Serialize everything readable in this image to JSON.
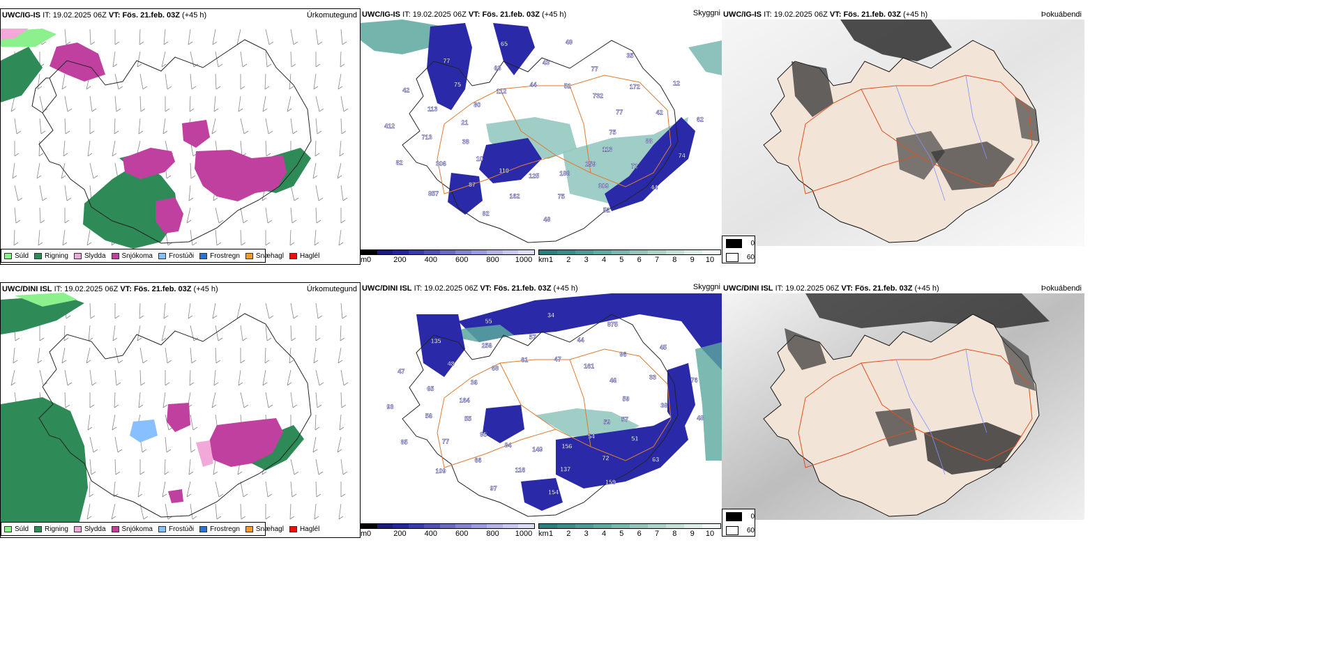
{
  "colors": {
    "drizzle": "#8cf08c",
    "rain": "#2e8b57",
    "sleet": "#f2a8d8",
    "snow": "#c040a0",
    "freezing_drizzle": "#88c0ff",
    "freezing_rain": "#3070d0",
    "snow_grains": "#f0a020",
    "hail": "#e81010",
    "land_fog": "#f3e4d8",
    "roads": "#e05020",
    "rivers": "#8090ff"
  },
  "rows": [
    {
      "model": "UWC/IG-IS",
      "it_label": "IT:",
      "it_value": "19.02.2025 06Z",
      "vt_label": "VT:",
      "vt_value": "Fös. 21.feb. 03Z",
      "lead": "(+45 h)",
      "precip_title": "Úrkomutegund",
      "vis_title": "Skyggni",
      "fog_title": "Þokuábendi",
      "ceiling_labels": [
        "75",
        "88",
        "74",
        "113",
        "72",
        "44",
        "259",
        "309",
        "52",
        "186",
        "75",
        "48",
        "125",
        "162",
        "92",
        "110",
        "87",
        "857",
        "10",
        "306",
        "82",
        "38",
        "713",
        "412",
        "21",
        "113",
        "42",
        "80",
        "75",
        "77",
        "112",
        "63",
        "65",
        "44",
        "43",
        "49",
        "52",
        "77",
        "35",
        "732",
        "172",
        "12",
        "77",
        "42",
        "62"
      ]
    },
    {
      "model": "UWC/DINI ISL",
      "it_label": "IT:",
      "it_value": "19.02.2025 06Z",
      "vt_label": "VT:",
      "vt_value": "Fös. 21.feb. 03Z",
      "lead": "(+45 h)",
      "precip_title": "Úrkomutegund",
      "vis_title": "Skyggni",
      "fog_title": "Þokuábendi",
      "ceiling_labels": [
        "59",
        "51",
        "63",
        "54",
        "72",
        "159",
        "156",
        "137",
        "154",
        "149",
        "116",
        "97",
        "84",
        "66",
        "109",
        "95",
        "77",
        "85",
        "55",
        "56",
        "93",
        "164",
        "65",
        "47",
        "36",
        "48",
        "135",
        "68",
        "256",
        "55",
        "61",
        "57",
        "34",
        "47",
        "44",
        "875",
        "161",
        "96",
        "45",
        "46",
        "33",
        "76",
        "59",
        "38",
        "48",
        "57"
      ]
    }
  ],
  "precip_legend": [
    {
      "label": "Súld",
      "color": "#8cf08c"
    },
    {
      "label": "Rigning",
      "color": "#2e8b57"
    },
    {
      "label": "Slydda",
      "color": "#f2a8d8"
    },
    {
      "label": "Snjókoma",
      "color": "#c040a0"
    },
    {
      "label": "Frostúði",
      "color": "#88c0ff"
    },
    {
      "label": "Frostregn",
      "color": "#3070d0"
    },
    {
      "label": "Snæhagl",
      "color": "#f0a020"
    },
    {
      "label": "Haglél",
      "color": "#e81010"
    }
  ],
  "ceiling_colorbar": {
    "unit": "m",
    "ticks": [
      "0",
      "200",
      "400",
      "600",
      "800",
      "1000"
    ],
    "values": [
      0,
      200,
      400,
      600,
      800,
      1000
    ],
    "colors": [
      "#000000",
      "#1a1a80",
      "#2424a0",
      "#3a3ab0",
      "#5050b8",
      "#6a6ac4",
      "#8484d0",
      "#9c9cdc",
      "#b4b4e4",
      "#c8c8ee",
      "#dcdcf4"
    ]
  },
  "visibility_colorbar": {
    "unit": "km",
    "ticks": [
      "1",
      "2",
      "3",
      "4",
      "5",
      "6",
      "7",
      "8",
      "9",
      "10"
    ],
    "values": [
      1,
      2,
      3,
      4,
      5,
      6,
      7,
      8,
      9,
      10
    ],
    "colors": [
      "#2a7f7f",
      "#3a8c88",
      "#4f9a94",
      "#64a8a0",
      "#7cb6ae",
      "#94c4bc",
      "#acd2ca",
      "#c4e0d8",
      "#dcece6",
      "#f0f8f4"
    ]
  },
  "fog_legend": [
    {
      "label": "0",
      "color": "#000000"
    },
    {
      "label": "60",
      "color": "#ffffff"
    }
  ]
}
